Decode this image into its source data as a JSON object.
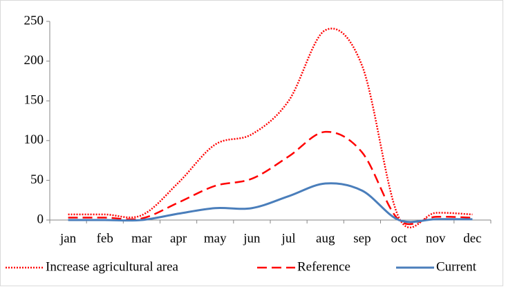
{
  "chart_data": {
    "type": "line",
    "categories": [
      "jan",
      "feb",
      "mar",
      "apr",
      "may",
      "jun",
      "jul",
      "aug",
      "sep",
      "oct",
      "nov",
      "dec"
    ],
    "series": [
      {
        "name": "Increase agricultural area",
        "color": "#ff0000",
        "style": "dotted",
        "values": [
          7,
          7,
          6,
          47,
          95,
          108,
          150,
          239,
          194,
          3,
          9,
          7
        ]
      },
      {
        "name": "Reference",
        "color": "#ff0000",
        "style": "dashed",
        "values": [
          3,
          3,
          2,
          22,
          43,
          52,
          80,
          111,
          85,
          0,
          4,
          3
        ]
      },
      {
        "name": "Current",
        "color": "#4a7ebb",
        "style": "solid",
        "values": [
          0,
          0,
          0,
          8,
          15,
          15,
          30,
          46,
          37,
          0,
          1,
          1
        ]
      }
    ],
    "ylim": [
      0,
      250
    ],
    "yticks": [
      0,
      50,
      100,
      150,
      200,
      250
    ],
    "grid": false,
    "smooth": true,
    "legend": "bottom"
  }
}
